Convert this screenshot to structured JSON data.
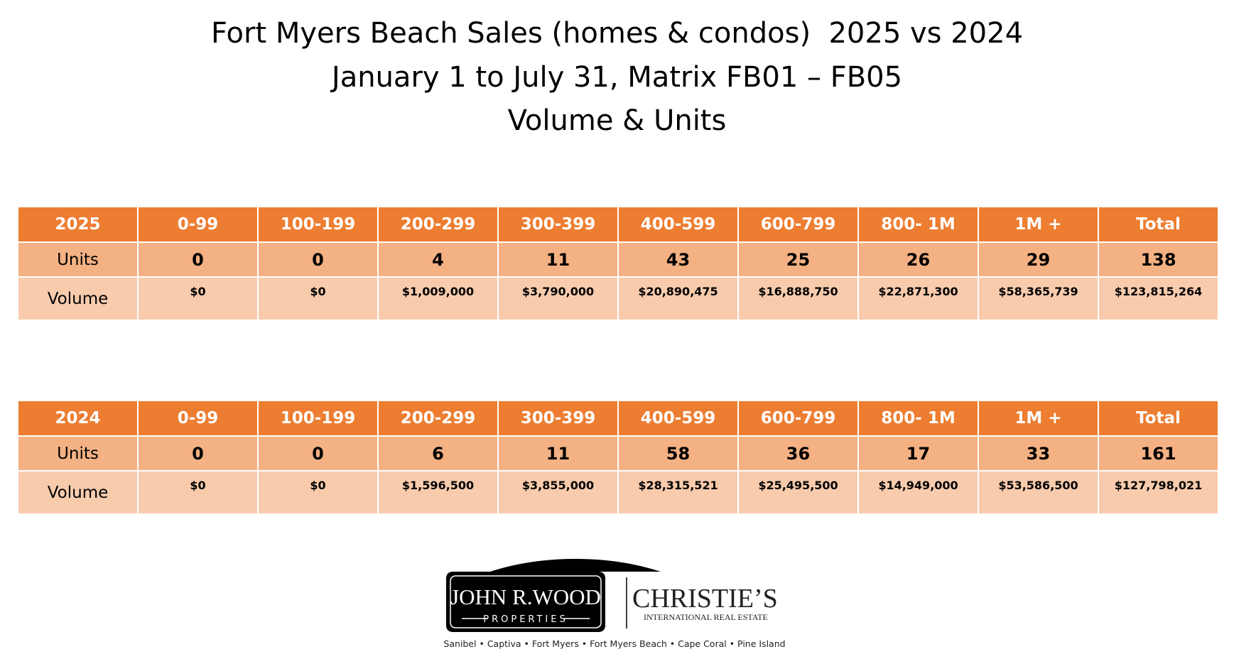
{
  "header": {
    "title": "Fort Myers Beach Sales (homes & condos)  2025 vs 2024",
    "subtitle": "January 1 to July 31, Matrix FB01 – FB05",
    "subtitle2": "Volume & Units"
  },
  "tables": [
    {
      "columns": [
        "2025",
        "0-99",
        "100-199",
        "200-299",
        "300-399",
        "400-599",
        "600-799",
        "800- 1M",
        "1M +",
        "Total"
      ],
      "rows": [
        [
          "Units",
          0,
          0,
          4,
          11,
          43,
          25,
          26,
          29,
          138
        ],
        [
          "Volume",
          "$0",
          "$0",
          "$1,009,000",
          "$3,790,000",
          "$20,890,475",
          "$16,888,750",
          "$22,871,300",
          "$58,365,739",
          "$123,815,264"
        ]
      ]
    },
    {
      "columns": [
        "2024",
        "0-99",
        "100-199",
        "200-299",
        "300-399",
        "400-599",
        "600-799",
        "800- 1M",
        "1M +",
        "Total"
      ],
      "rows": [
        [
          "Units",
          0,
          0,
          6,
          11,
          58,
          36,
          17,
          33,
          161
        ],
        [
          "Volume",
          "$0",
          "$0",
          "$1,596,500",
          "$3,855,000",
          "$28,315,521",
          "$25,495,500",
          "$14,949,000",
          "$53,586,500",
          "$127,798,021"
        ]
      ]
    }
  ],
  "logo": {
    "name": "JOHN R.WOOD",
    "line": "PROPERTIES",
    "partner": "CHRISTIE’S",
    "partner_sub": "INTERNATIONAL REAL ESTATE",
    "tagline": "Sanibel • Captiva • Fort Myers • Fort Myers Beach • Cape Coral • Pine Island"
  }
}
